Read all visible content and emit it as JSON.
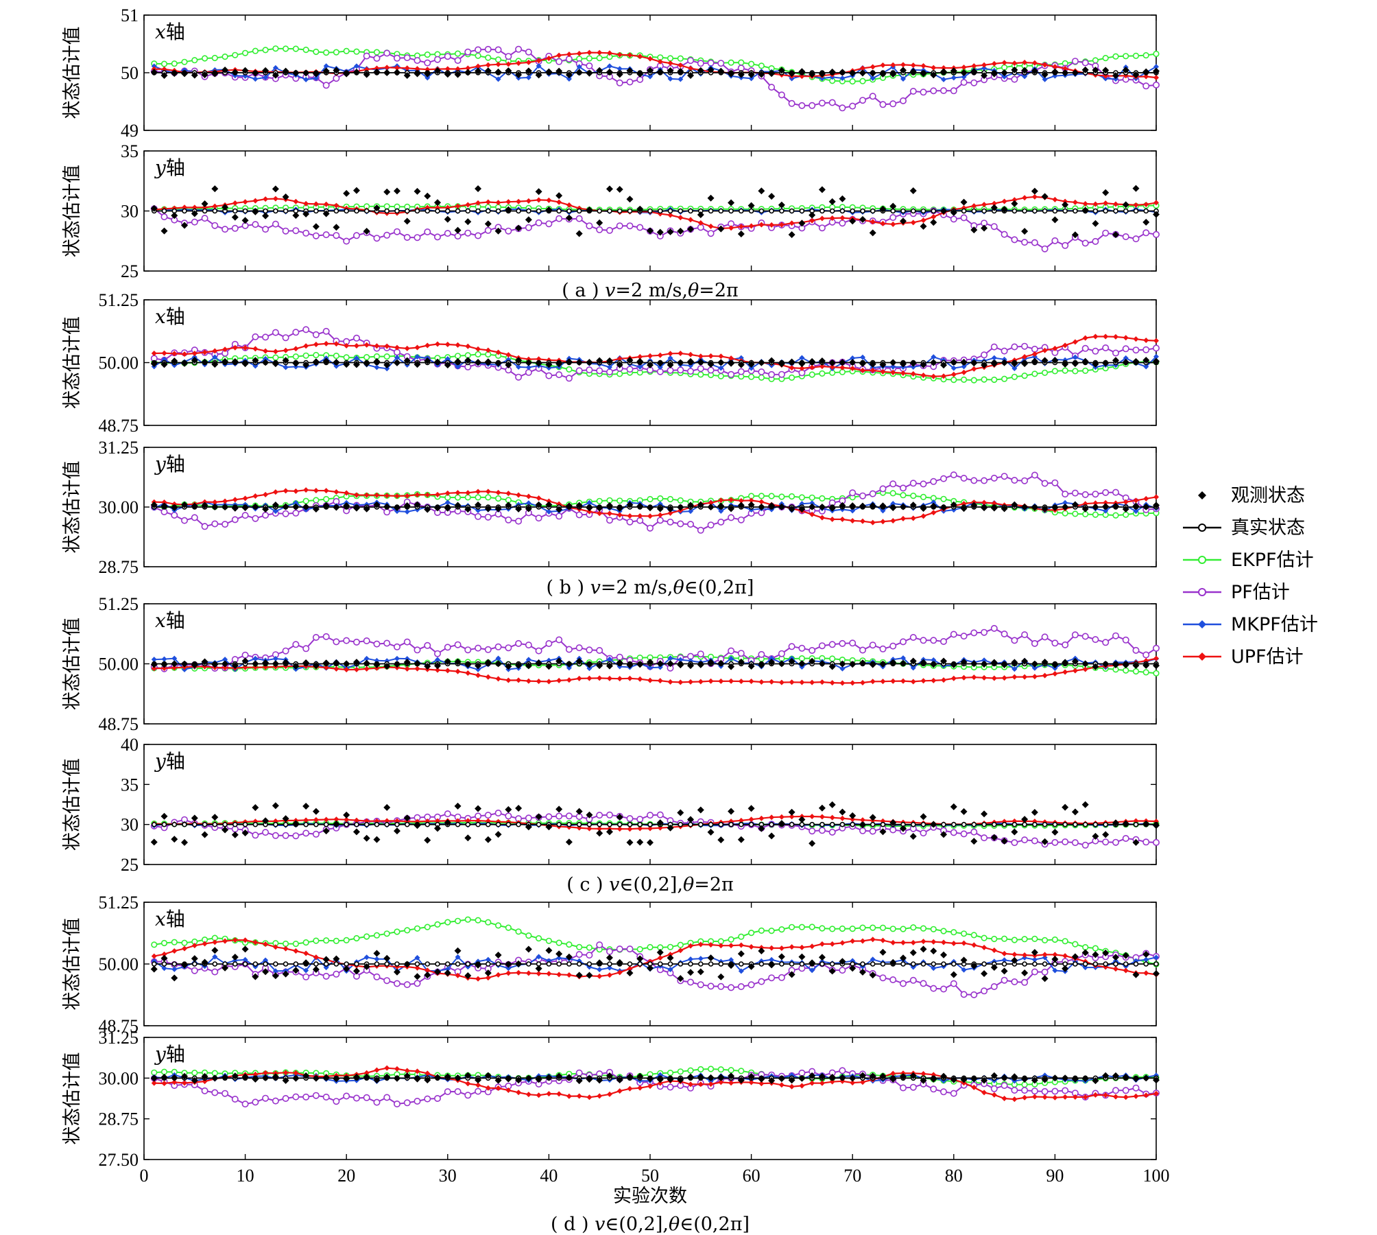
{
  "chart_data": {
    "type": "line",
    "x_label": "实验次数",
    "x_range": [
      0,
      100
    ],
    "x_ticks": [
      0,
      10,
      20,
      30,
      40,
      50,
      60,
      70,
      80,
      90,
      100
    ],
    "y_label": "状态估计值",
    "legend": [
      {
        "name": "观测状态",
        "color": "#000000",
        "marker": "diamond"
      },
      {
        "name": "真实状态",
        "color": "#000000",
        "marker": "open-circle"
      },
      {
        "name": "EKPF估计",
        "color": "#33ee33",
        "marker": "open-circle"
      },
      {
        "name": "PF估计",
        "color": "#9933cc",
        "marker": "open-circle"
      },
      {
        "name": "MKPF估计",
        "color": "#1f4fdd",
        "marker": "diamond"
      },
      {
        "name": "UPF估计",
        "color": "#ee1111",
        "marker": "diamond"
      }
    ],
    "groups": [
      {
        "caption_pre": "( a ) ",
        "caption_var": "v",
        "caption_post": "=2 m/s,",
        "caption_theta": "θ",
        "caption_tail": "=2π",
        "panels": [
          {
            "axis_var": "x",
            "axis_suffix": "轴",
            "ylim": [
              49,
              51
            ],
            "yticks": [
              "49",
              "50",
              "51"
            ],
            "ytick_values": [
              49,
              50,
              51
            ],
            "true_value": 50,
            "obs_spread": 0.05,
            "ekpf_amp": 0.3,
            "pf_amp": 0.55,
            "mkpf_amp": 0.12,
            "upf_amp": 0.3,
            "upf_bias": 0.1,
            "ekpf_bias": 0.15
          },
          {
            "axis_var": "y",
            "axis_suffix": "轴",
            "ylim": [
              25,
              35
            ],
            "yticks": [
              "25",
              "30",
              "35"
            ],
            "ytick_values": [
              25,
              30,
              35
            ],
            "true_value": 30,
            "obs_spread": 2.0,
            "ekpf_amp": 0.35,
            "pf_amp": 2.8,
            "mkpf_amp": 0.15,
            "upf_amp": 1.6,
            "upf_bias": 0.3,
            "ekpf_bias": 0.1
          }
        ]
      },
      {
        "caption_pre": "( b ) ",
        "caption_var": "v",
        "caption_post": "=2 m/s,",
        "caption_theta": "θ",
        "caption_tail": "∈(0,2π]",
        "panels": [
          {
            "axis_var": "x",
            "axis_suffix": "轴",
            "ylim": [
              48.75,
              51.25
            ],
            "yticks": [
              "48.75",
              "50.00",
              "51.25"
            ],
            "ytick_values": [
              48.75,
              50.0,
              51.25
            ],
            "true_value": 50,
            "obs_spread": 0.05,
            "ekpf_amp": 0.35,
            "pf_amp": 0.6,
            "mkpf_amp": 0.12,
            "upf_amp": 0.45,
            "upf_bias": 0.35,
            "ekpf_bias": 0.0
          },
          {
            "axis_var": "y",
            "axis_suffix": "轴",
            "ylim": [
              28.75,
              31.25
            ],
            "yticks": [
              "28.75",
              "30.00",
              "31.25"
            ],
            "ytick_values": [
              28.75,
              30.0,
              31.25
            ],
            "true_value": 30,
            "obs_spread": 0.05,
            "ekpf_amp": 0.3,
            "pf_amp": 0.65,
            "mkpf_amp": 0.1,
            "upf_amp": 0.4,
            "upf_bias": 0.15,
            "ekpf_bias": 0.0
          }
        ]
      },
      {
        "caption_pre": "( c ) ",
        "caption_var": "v",
        "caption_post": "∈(0,2],",
        "caption_theta": "θ",
        "caption_tail": "=2π",
        "panels": [
          {
            "axis_var": "x",
            "axis_suffix": "轴",
            "ylim": [
              48.75,
              51.25
            ],
            "yticks": [
              "48.75",
              "50.00",
              "51.25"
            ],
            "ytick_values": [
              48.75,
              50.0,
              51.25
            ],
            "true_value": 50,
            "obs_spread": 0.06,
            "ekpf_amp": 0.25,
            "pf_amp": 0.7,
            "mkpf_amp": 0.12,
            "upf_amp": 0.3,
            "upf_bias": -0.2,
            "ekpf_bias": -0.1
          },
          {
            "axis_var": "y",
            "axis_suffix": "轴",
            "ylim": [
              25,
              40
            ],
            "yticks": [
              "25",
              "30",
              "35",
              "40"
            ],
            "ytick_values": [
              25,
              30,
              35,
              40
            ],
            "true_value": 30,
            "obs_spread": 2.5,
            "ekpf_amp": 0.3,
            "pf_amp": 2.6,
            "mkpf_amp": 0.15,
            "upf_amp": 0.9,
            "upf_bias": 0.2,
            "ekpf_bias": 0.1
          }
        ]
      },
      {
        "caption_pre": "( d ) ",
        "caption_var": "v",
        "caption_post": "∈(0,2],",
        "caption_theta": "θ",
        "caption_tail": "∈(0,2π]",
        "panels": [
          {
            "axis_var": "x",
            "axis_suffix": "轴",
            "ylim": [
              48.75,
              51.25
            ],
            "yticks": [
              "48.75",
              "50.00",
              "51.25"
            ],
            "ytick_values": [
              48.75,
              50.0,
              51.25
            ],
            "true_value": 50,
            "obs_spread": 0.3,
            "ekpf_amp": 0.55,
            "pf_amp": 0.55,
            "mkpf_amp": 0.15,
            "upf_amp": 0.45,
            "upf_bias": 0.3,
            "ekpf_bias": 0.35
          },
          {
            "axis_var": "y",
            "axis_suffix": "轴",
            "ylim": [
              27.5,
              31.25
            ],
            "yticks": [
              "27.50",
              "28.75",
              "30.00",
              "31.25"
            ],
            "ytick_values": [
              27.5,
              28.75,
              30.0,
              31.25
            ],
            "true_value": 30,
            "obs_spread": 0.08,
            "ekpf_amp": 0.35,
            "pf_amp": 0.75,
            "mkpf_amp": 0.1,
            "upf_amp": 0.55,
            "upf_bias": -0.2,
            "ekpf_bias": 0.15
          }
        ]
      }
    ]
  }
}
